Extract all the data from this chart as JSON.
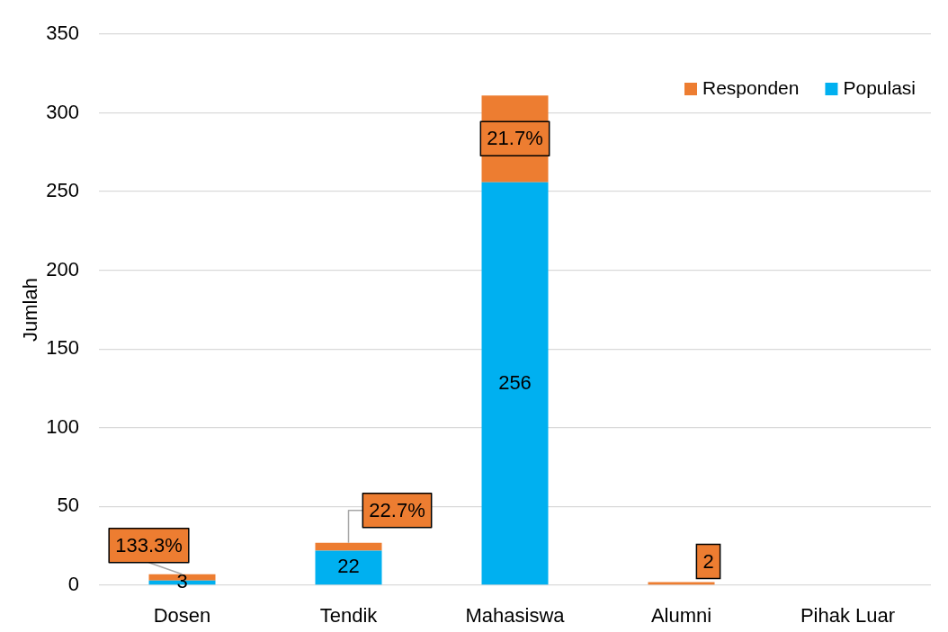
{
  "chart_data": {
    "type": "bar",
    "stacked": true,
    "ylabel": "Jumlah",
    "categories": [
      "Dosen",
      "Tendik",
      "Mahasiswa",
      "Alumni",
      "Pihak Luar"
    ],
    "series": [
      {
        "name": "Populasi",
        "color": "#00b0f0",
        "values": [
          3,
          22,
          256,
          0,
          0
        ],
        "value_labels": [
          "3",
          "22",
          "256",
          null,
          null
        ]
      },
      {
        "name": "Responden",
        "color": "#ed7d31",
        "values": [
          4,
          5,
          55,
          2,
          0
        ],
        "value_labels": [
          null,
          null,
          null,
          "2",
          null
        ]
      }
    ],
    "annotations": [
      {
        "text": "133.3%",
        "x": "Dosen",
        "y": 7
      },
      {
        "text": "22.7%",
        "x": "Tendik",
        "y": 27
      },
      {
        "text": "21.7%",
        "x": "Mahasiswa",
        "y": 311
      }
    ],
    "ylim": [
      0,
      350
    ],
    "yticks": [
      0,
      50,
      100,
      150,
      200,
      250,
      300,
      350
    ],
    "grid": "y",
    "legend": "top right"
  }
}
